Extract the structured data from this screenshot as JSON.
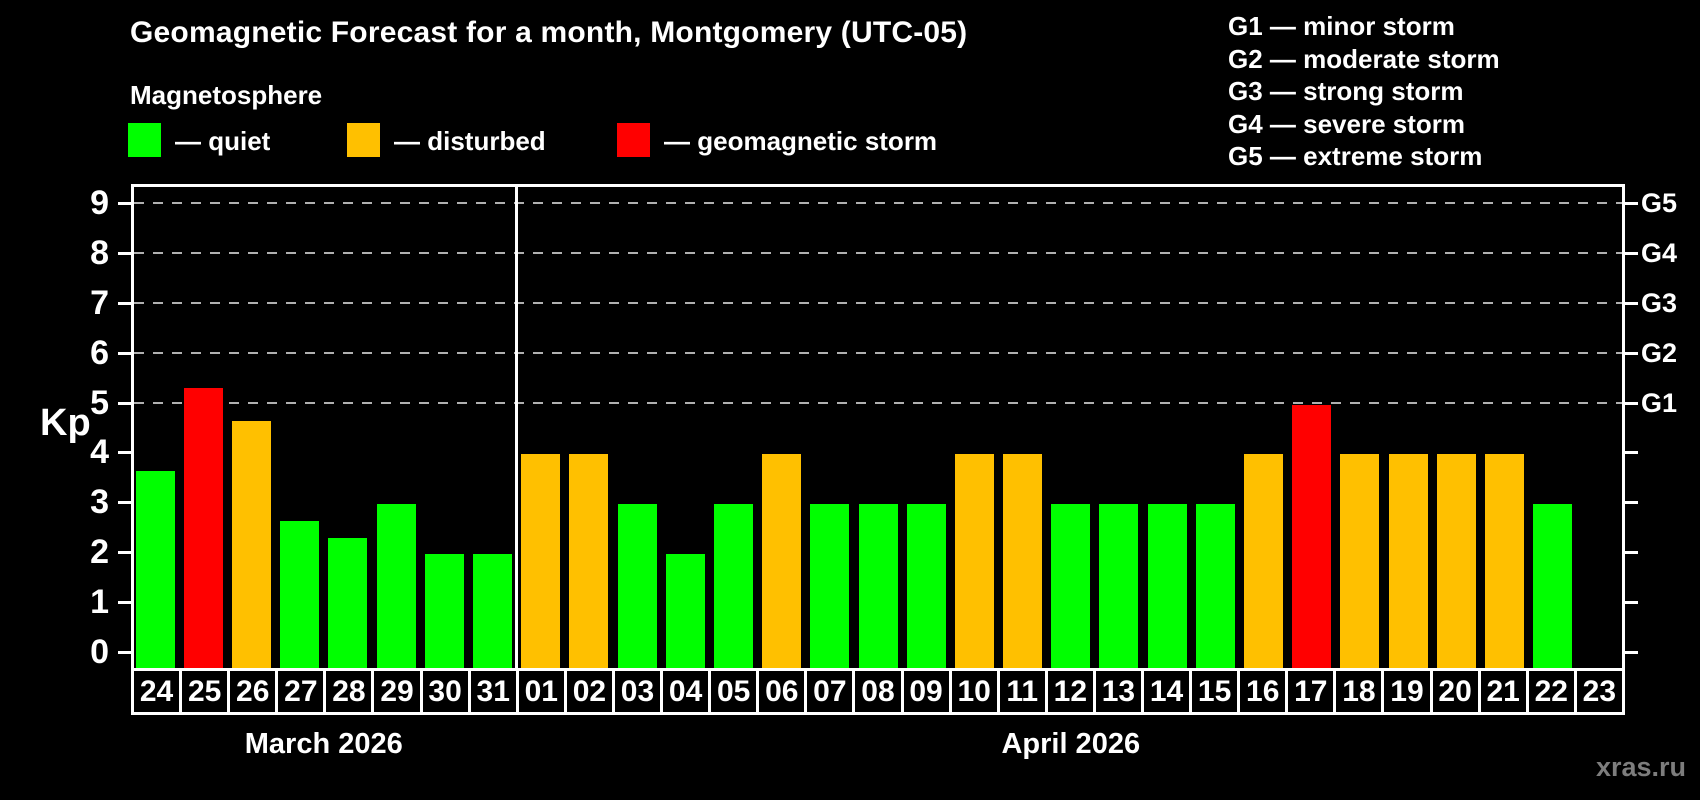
{
  "title": "Geomagnetic Forecast for a month, Montgomery (UTC-05)",
  "subtitle": "Magnetosphere",
  "legend": {
    "quiet": "— quiet",
    "disturbed": "— disturbed",
    "storm": "— geomagnetic storm"
  },
  "storm_scale": [
    "G1 — minor storm",
    "G2 — moderate storm",
    "G3 — strong storm",
    "G4 — severe storm",
    "G5 — extreme storm"
  ],
  "watermark": "xras.ru",
  "colors": {
    "quiet": "#00ff00",
    "disturbed": "#ffc000",
    "storm": "#ff0000",
    "grid": "#b0b0b0",
    "axis": "#ffffff",
    "background": "#000000",
    "watermark": "#7d7d7d"
  },
  "chart_data": {
    "type": "bar",
    "title": "Geomagnetic Forecast for a month, Montgomery (UTC-05)",
    "ylabel": "Kp",
    "ylim": [
      0,
      9
    ],
    "yticks": [
      0,
      1,
      2,
      3,
      4,
      5,
      6,
      7,
      8,
      9
    ],
    "grid_levels": [
      5,
      6,
      7,
      8,
      9
    ],
    "grid": "dashed-on-storm-levels-only",
    "legend_position": "top",
    "right_axis": [
      {
        "label": "G1",
        "value": 5
      },
      {
        "label": "G2",
        "value": 6
      },
      {
        "label": "G3",
        "value": 7
      },
      {
        "label": "G4",
        "value": 8
      },
      {
        "label": "G5",
        "value": 9
      }
    ],
    "categories": [
      "24",
      "25",
      "26",
      "27",
      "28",
      "29",
      "30",
      "31",
      "01",
      "02",
      "03",
      "04",
      "05",
      "06",
      "07",
      "08",
      "09",
      "10",
      "11",
      "12",
      "13",
      "14",
      "15",
      "16",
      "17",
      "18",
      "19",
      "20",
      "21",
      "22",
      "23"
    ],
    "values": [
      3.67,
      5.33,
      4.67,
      2.67,
      2.33,
      3,
      2,
      2,
      4,
      4,
      3,
      2,
      3,
      4,
      3,
      3,
      3,
      4,
      4,
      3,
      3,
      3,
      3,
      4,
      5,
      4,
      4,
      4,
      4,
      3,
      null
    ],
    "statuses": [
      "quiet",
      "storm",
      "disturbed",
      "quiet",
      "quiet",
      "quiet",
      "quiet",
      "quiet",
      "disturbed",
      "disturbed",
      "quiet",
      "quiet",
      "quiet",
      "disturbed",
      "quiet",
      "quiet",
      "quiet",
      "disturbed",
      "disturbed",
      "quiet",
      "quiet",
      "quiet",
      "quiet",
      "disturbed",
      "storm",
      "disturbed",
      "disturbed",
      "disturbed",
      "disturbed",
      "quiet",
      null
    ],
    "months": [
      {
        "label": "March 2026",
        "start": 0,
        "days": 8
      },
      {
        "label": "April 2026",
        "start": 8,
        "days": 23
      }
    ]
  }
}
